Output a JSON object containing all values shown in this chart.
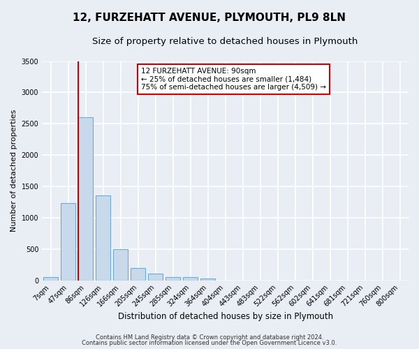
{
  "title": "12, FURZEHATT AVENUE, PLYMOUTH, PL9 8LN",
  "subtitle": "Size of property relative to detached houses in Plymouth",
  "xlabel": "Distribution of detached houses by size in Plymouth",
  "ylabel": "Number of detached properties",
  "bar_labels": [
    "7sqm",
    "47sqm",
    "86sqm",
    "126sqm",
    "166sqm",
    "205sqm",
    "245sqm",
    "285sqm",
    "324sqm",
    "364sqm",
    "404sqm",
    "443sqm",
    "483sqm",
    "522sqm",
    "562sqm",
    "602sqm",
    "641sqm",
    "681sqm",
    "721sqm",
    "760sqm",
    "800sqm"
  ],
  "bar_values": [
    50,
    1230,
    2600,
    1350,
    500,
    200,
    110,
    50,
    50,
    30,
    0,
    0,
    0,
    0,
    0,
    0,
    0,
    0,
    0,
    0,
    0
  ],
  "bar_color": "#c8d9eb",
  "bar_edgecolor": "#6aaed6",
  "bar_linewidth": 0.8,
  "vline_color": "#cc0000",
  "ylim": [
    0,
    3500
  ],
  "yticks": [
    0,
    500,
    1000,
    1500,
    2000,
    2500,
    3000,
    3500
  ],
  "annotation_title": "12 FURZEHATT AVENUE: 90sqm",
  "annotation_line1": "← 25% of detached houses are smaller (1,484)",
  "annotation_line2": "75% of semi-detached houses are larger (4,509) →",
  "annotation_box_color": "#ffffff",
  "annotation_box_edgecolor": "#cc0000",
  "footnote1": "Contains HM Land Registry data © Crown copyright and database right 2024.",
  "footnote2": "Contains public sector information licensed under the Open Government Licence v3.0.",
  "background_color": "#e8eef4",
  "plot_background_color": "#e8eef4",
  "grid_color": "#ffffff",
  "title_fontsize": 11,
  "subtitle_fontsize": 9.5,
  "xlabel_fontsize": 8.5,
  "ylabel_fontsize": 8,
  "tick_fontsize": 7,
  "footnote_fontsize": 6
}
